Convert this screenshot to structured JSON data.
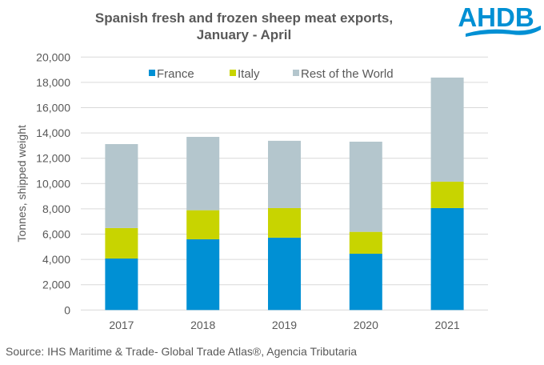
{
  "chart_data": {
    "type": "bar",
    "stacked": true,
    "title": "Spanish fresh and frozen sheep meat exports, January - April",
    "title_lines": [
      "Spanish fresh and frozen sheep meat exports,",
      "January - April"
    ],
    "ylabel": "Tonnes, shipped weight",
    "xlabel": "",
    "ylim": [
      0,
      20000
    ],
    "yticks": [
      0,
      2000,
      4000,
      6000,
      8000,
      10000,
      12000,
      14000,
      16000,
      18000,
      20000
    ],
    "ytick_labels": [
      "0",
      "2,000",
      "4,000",
      "6,000",
      "8,000",
      "10,000",
      "12,000",
      "14,000",
      "16,000",
      "18,000",
      "20,000"
    ],
    "categories": [
      "2017",
      "2018",
      "2019",
      "2020",
      "2021"
    ],
    "grid": true,
    "legend_position": "top",
    "series": [
      {
        "name": "France",
        "color": "#0090d4",
        "values": [
          4070,
          5590,
          5720,
          4450,
          8060
        ]
      },
      {
        "name": "Italy",
        "color": "#c8d400",
        "values": [
          2410,
          2300,
          2340,
          1730,
          2090
        ]
      },
      {
        "name": "Rest of the World",
        "color": "#b4c6cd",
        "values": [
          6640,
          5800,
          5320,
          7130,
          8230
        ]
      }
    ]
  },
  "logo": {
    "text": "AHDB",
    "color": "#0090d4"
  },
  "source": "Source: IHS Maritime & Trade- Global Trade Atlas®, Agencia Tributaria"
}
